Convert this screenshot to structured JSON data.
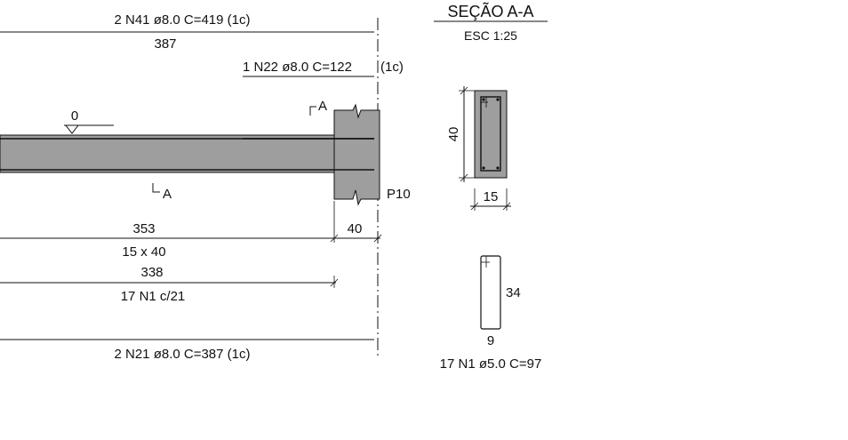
{
  "section": {
    "title": "SEÇÃO A-A",
    "scale": "ESC 1:25",
    "height_dim": "40",
    "width_dim": "15"
  },
  "top_bars": {
    "label": "2 N41 ø8.0 C=419 (1c)",
    "length": "387"
  },
  "extra_top_bar": {
    "label": "1 N22 ø8.0 C=122",
    "layer": "(1c)"
  },
  "level_marker": "0",
  "cut_marks": {
    "top": "A",
    "bottom": "A"
  },
  "pillar_label": "P10",
  "beam_dims": {
    "span": "353",
    "support_width": "40",
    "section_size": "15 x 40"
  },
  "stirrups": {
    "length": "338",
    "spacing_label": "17 N1 c/21",
    "shape_height": "34",
    "shape_width": "9",
    "schedule_label": "17 N1 ø5.0 C=97"
  },
  "bottom_bars": {
    "label": "2 N21 ø8.0 C=387 (1c)"
  }
}
